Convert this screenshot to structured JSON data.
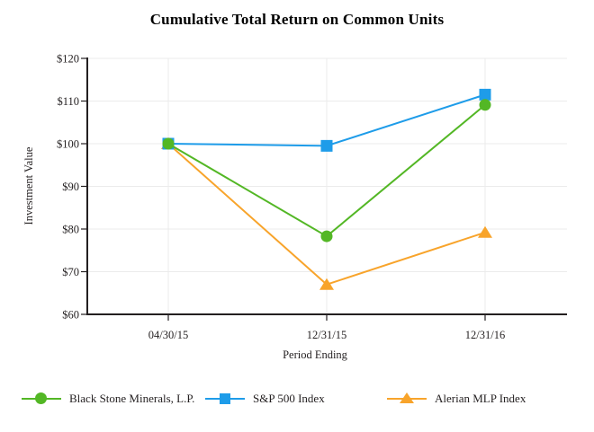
{
  "page": {
    "background": "#ffffff"
  },
  "colors": {
    "axis": "#231F20",
    "grid": "#EBEBEB",
    "text": "#231F20",
    "title": "#000000"
  },
  "chart_data": {
    "type": "line",
    "title": "Cumulative Total Return on Common Units",
    "xlabel": "Period Ending",
    "ylabel": "Investment Value",
    "categories": [
      "04/30/15",
      "12/31/15",
      "12/31/16"
    ],
    "series": [
      {
        "name": "Black Stone Minerals, L.P.",
        "marker": "circle",
        "color": "#53B725",
        "values": [
          100,
          78.3,
          109.1
        ]
      },
      {
        "name": "S&P 500 Index",
        "marker": "square",
        "color": "#1E9CE9",
        "values": [
          100,
          99.5,
          111.5
        ]
      },
      {
        "name": "Alerian MLP Index",
        "marker": "triangle",
        "color": "#F8A42B",
        "values": [
          100,
          67.0,
          79.2
        ]
      }
    ],
    "ylim": [
      60,
      120
    ],
    "ytick_step": 10,
    "ytick_prefix": "$",
    "ytick_labels": [
      "$60",
      "$70",
      "$80",
      "$90",
      "$100",
      "$110",
      "$120"
    ],
    "grid": true,
    "legend_position": "bottom"
  }
}
